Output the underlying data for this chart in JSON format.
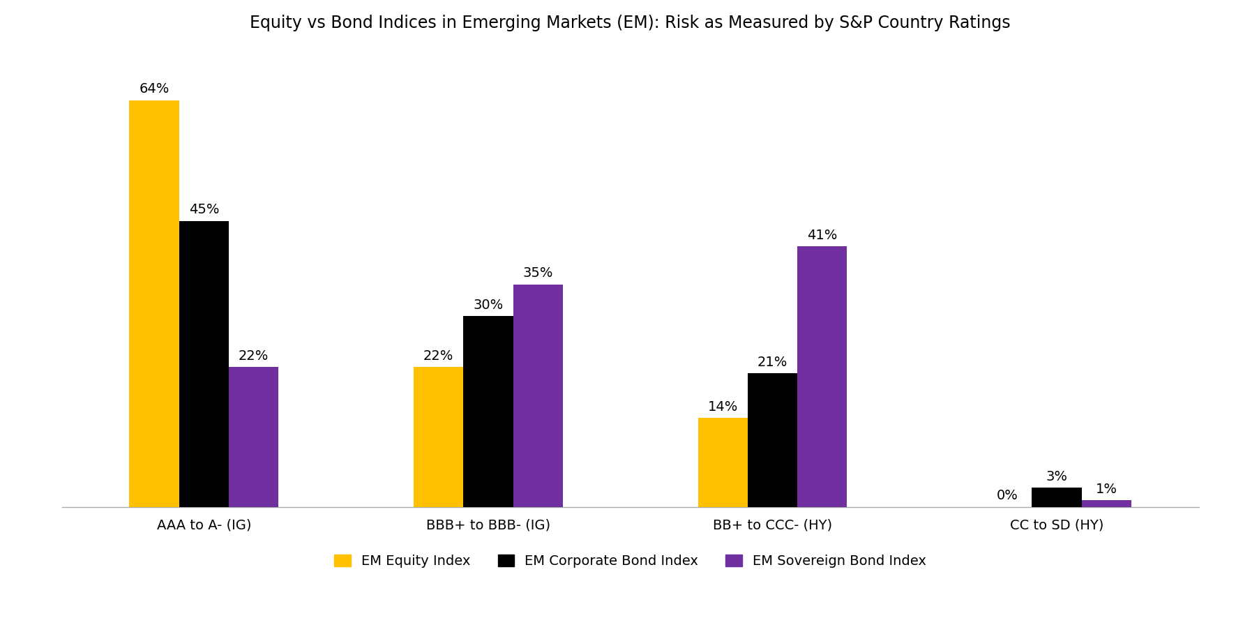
{
  "title": "Equity vs Bond Indices in Emerging Markets (EM): Risk as Measured by S&P Country Ratings",
  "categories": [
    "AAA to A- (IG)",
    "BBB+ to BBB- (IG)",
    "BB+ to CCC- (HY)",
    "CC to SD (HY)"
  ],
  "series": {
    "EM Equity Index": [
      64,
      22,
      14,
      0
    ],
    "EM Corporate Bond Index": [
      45,
      30,
      21,
      3
    ],
    "EM Sovereign Bond Index": [
      22,
      35,
      41,
      1
    ]
  },
  "colors": {
    "EM Equity Index": "#FFC000",
    "EM Corporate Bond Index": "#000000",
    "EM Sovereign Bond Index": "#7030A0"
  },
  "labels": {
    "EM Equity Index": [
      "64%",
      "22%",
      "14%",
      "0%"
    ],
    "EM Corporate Bond Index": [
      "45%",
      "30%",
      "21%",
      "3%"
    ],
    "EM Sovereign Bond Index": [
      "22%",
      "35%",
      "41%",
      "1%"
    ]
  },
  "ylim": [
    0,
    72
  ],
  "bar_width": 0.28,
  "title_fontsize": 17,
  "tick_fontsize": 14,
  "label_fontsize": 14,
  "legend_fontsize": 14,
  "background_color": "#FFFFFF"
}
